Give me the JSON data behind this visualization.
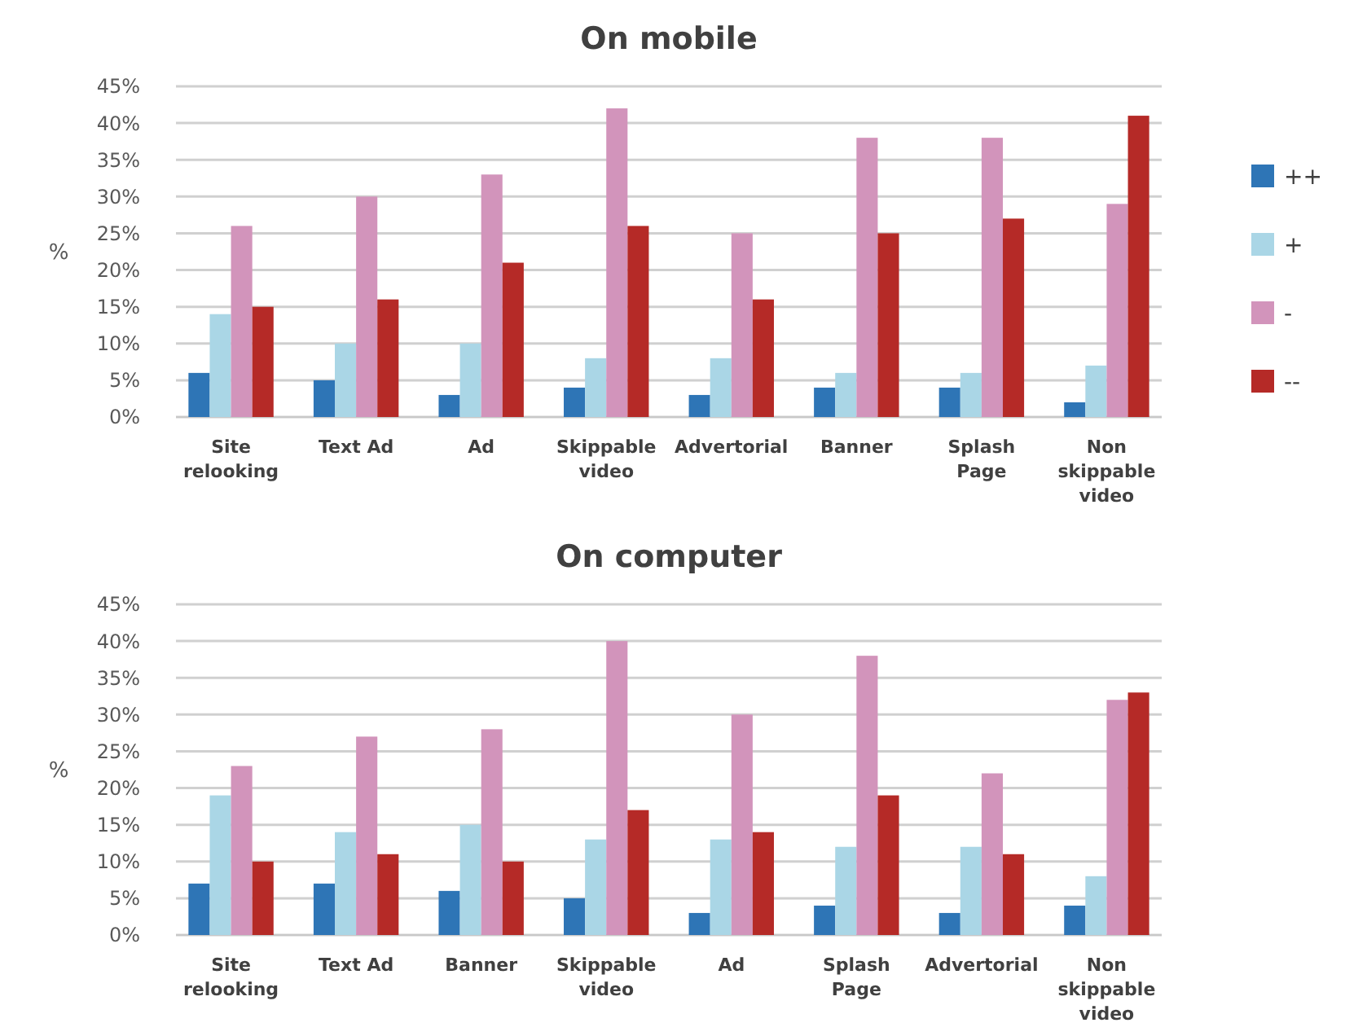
{
  "chart_data": [
    {
      "type": "bar",
      "title": "On mobile",
      "ylabel": "%",
      "categories": [
        "Site relooking",
        "Text Ad",
        "Ad",
        "Skippable video",
        "Advertorial",
        "Banner",
        "Splash Page",
        "Non skippable video"
      ],
      "series": [
        {
          "name": "++",
          "color": "#2e75b6",
          "values": [
            6,
            5,
            3,
            4,
            3,
            4,
            4,
            2
          ]
        },
        {
          "name": "+",
          "color": "#aad6e6",
          "values": [
            14,
            10,
            10,
            8,
            8,
            6,
            6,
            7
          ]
        },
        {
          "name": "-",
          "color": "#d294bb",
          "values": [
            26,
            30,
            33,
            42,
            25,
            38,
            38,
            29
          ]
        },
        {
          "name": "--",
          "color": "#b52a27",
          "values": [
            15,
            16,
            21,
            26,
            16,
            25,
            27,
            41
          ]
        }
      ],
      "ylim": [
        0,
        45
      ],
      "yticks": [
        {
          "value": 0,
          "label": "0%"
        },
        {
          "value": 5,
          "label": "5%"
        },
        {
          "value": 10,
          "label": "10%"
        },
        {
          "value": 15,
          "label": "15%"
        },
        {
          "value": 20,
          "label": "20%"
        },
        {
          "value": 25,
          "label": "25%"
        },
        {
          "value": 30,
          "label": "30%"
        },
        {
          "value": 35,
          "label": "35%"
        },
        {
          "value": 40,
          "label": "40%"
        },
        {
          "value": 45,
          "label": "45%"
        }
      ],
      "grid": "y",
      "legend": "right"
    },
    {
      "type": "bar",
      "title": "On computer",
      "ylabel": "%",
      "categories": [
        "Site relooking",
        "Text Ad",
        "Banner",
        "Skippable video",
        "Ad",
        "Splash Page",
        "Advertorial",
        "Non skippable video"
      ],
      "series": [
        {
          "color": "#2e75b6",
          "values": [
            7,
            7,
            6,
            5,
            3,
            4,
            3,
            4
          ]
        },
        {
          "color": "#aad6e6",
          "values": [
            19,
            14,
            15,
            13,
            13,
            12,
            12,
            8
          ]
        },
        {
          "color": "#d294bb",
          "values": [
            23,
            27,
            28,
            40,
            30,
            38,
            22,
            32
          ]
        },
        {
          "color": "#b52a27",
          "values": [
            10,
            11,
            10,
            17,
            14,
            19,
            11,
            33
          ]
        }
      ],
      "ylim": [
        0,
        45
      ],
      "yticks": [
        {
          "value": 0,
          "label": "0%"
        },
        {
          "value": 5,
          "label": "5%"
        },
        {
          "value": 10,
          "label": "10%"
        },
        {
          "value": 15,
          "label": "15%"
        },
        {
          "value": 20,
          "label": "20%"
        },
        {
          "value": 25,
          "label": "25%"
        },
        {
          "value": 30,
          "label": "30%"
        },
        {
          "value": 35,
          "label": "35%"
        },
        {
          "value": 40,
          "label": "40%"
        },
        {
          "value": 45,
          "label": "45%"
        }
      ],
      "grid": "y"
    }
  ]
}
